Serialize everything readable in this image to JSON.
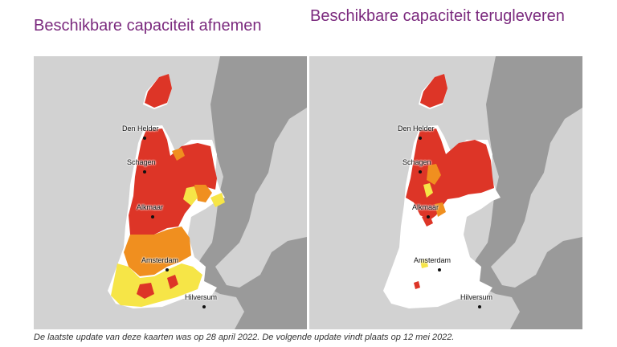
{
  "maps": [
    {
      "title": "Beschikbare capaciteit afnemen",
      "cities": [
        "Den Helder",
        "Schagen",
        "Alkmaar",
        "Amsterdam",
        "Hilversum"
      ]
    },
    {
      "title": "Beschikbare capaciteit terugleveren",
      "cities": [
        "Den Helder",
        "Schagen",
        "Alkmaar",
        "Amsterdam",
        "Hilversum"
      ]
    }
  ],
  "caption": "De laatste update van deze kaarten was op 28 april 2022. De volgende update vindt plaats op 12 mei 2022.",
  "colors": {
    "land": "#d2d2d2",
    "water": "#9a9a9a",
    "region_base": "#ffffff",
    "no_capacity": "#dd3527",
    "limited_capacity": "#f08f1f",
    "some_capacity": "#f6e547",
    "text_title": "#7b2a7e"
  }
}
